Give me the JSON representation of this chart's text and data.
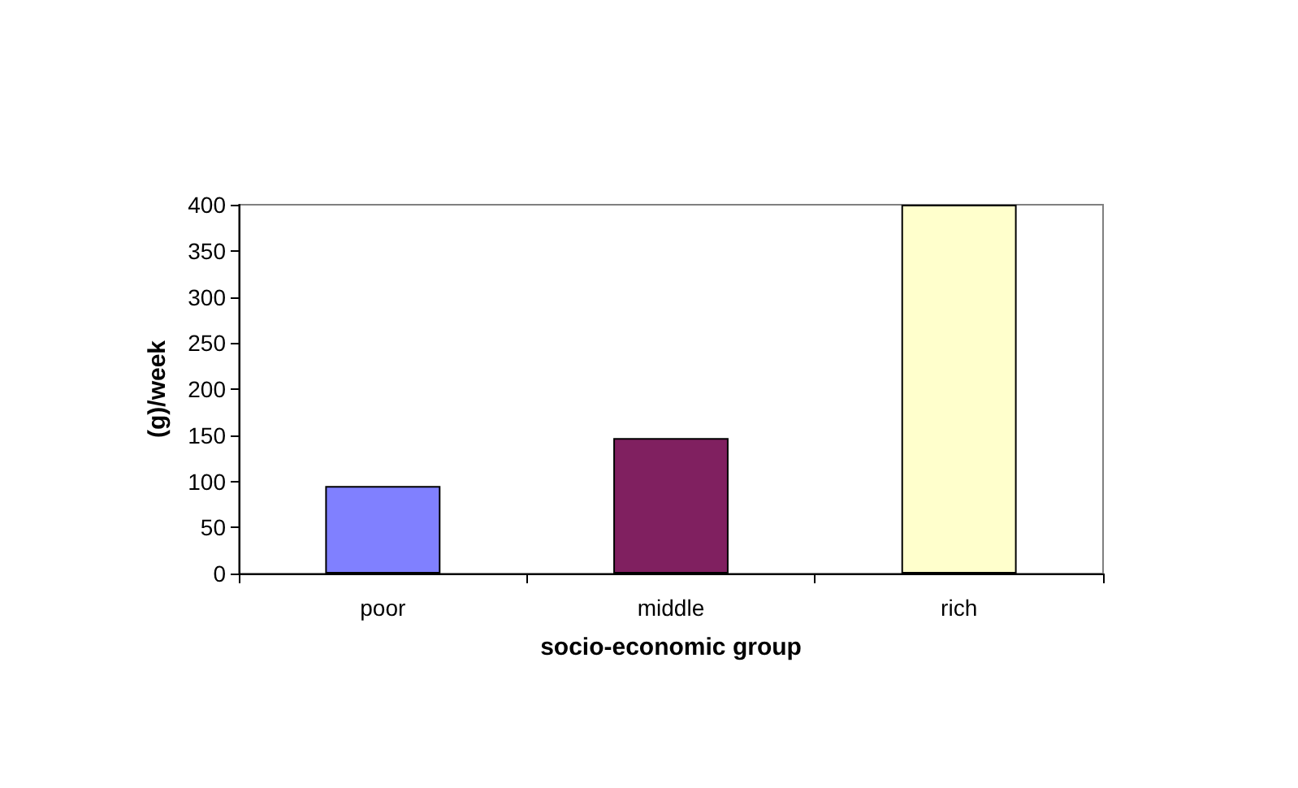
{
  "chart_data": {
    "type": "bar",
    "xlabel": "socio-economic group",
    "ylabel": "(g)/week",
    "categories": [
      "poor",
      "middle",
      "rich"
    ],
    "colors": [
      "#8080ff",
      "#802060",
      "#ffffcc"
    ],
    "values": [
      95,
      147,
      400
    ],
    "ylim": [
      0,
      400
    ],
    "yticks": [
      0,
      50,
      100,
      150,
      200,
      250,
      300,
      350,
      400
    ]
  }
}
